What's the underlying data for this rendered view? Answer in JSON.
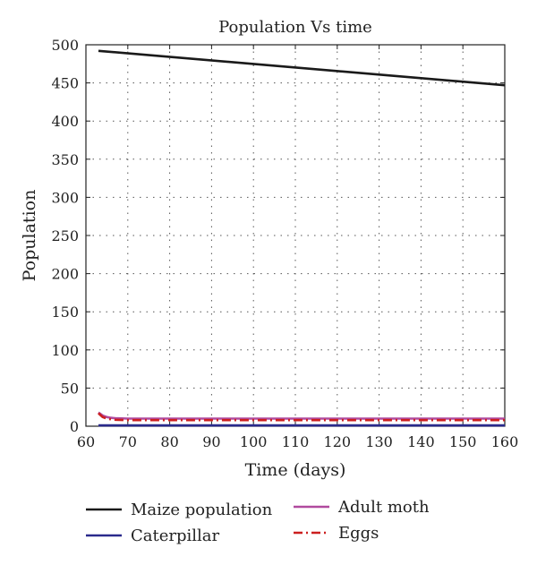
{
  "chart_data": {
    "type": "line",
    "title": "Population Vs time",
    "xlabel": "Time (days)",
    "ylabel": "Population",
    "xlim": [
      60,
      160
    ],
    "ylim": [
      0,
      500
    ],
    "xticks": [
      60,
      70,
      80,
      90,
      100,
      110,
      120,
      130,
      140,
      150,
      160
    ],
    "yticks": [
      0,
      50,
      100,
      150,
      200,
      250,
      300,
      350,
      400,
      450,
      500
    ],
    "grid": true,
    "legend_position": "below",
    "series": [
      {
        "name": "Maize population",
        "color": "#1a1a1a",
        "style": "solid",
        "x": [
          63,
          160
        ],
        "y": [
          492,
          447
        ]
      },
      {
        "name": "Caterpillar",
        "color": "#2a2a8c",
        "style": "solid",
        "x": [
          63,
          160
        ],
        "y": [
          1,
          1
        ]
      },
      {
        "name": "Adult moth",
        "color": "#b04a9e",
        "style": "solid",
        "x": [
          63,
          64,
          65,
          66,
          67,
          70,
          160
        ],
        "y": [
          18,
          14,
          12,
          11,
          10.5,
          10,
          10
        ]
      },
      {
        "name": "Eggs",
        "color": "#cc1f1f",
        "style": "dashdot",
        "x": [
          63,
          64,
          65,
          66,
          67,
          70,
          160
        ],
        "y": [
          17,
          12,
          10,
          9,
          8.5,
          8,
          8
        ]
      }
    ]
  }
}
